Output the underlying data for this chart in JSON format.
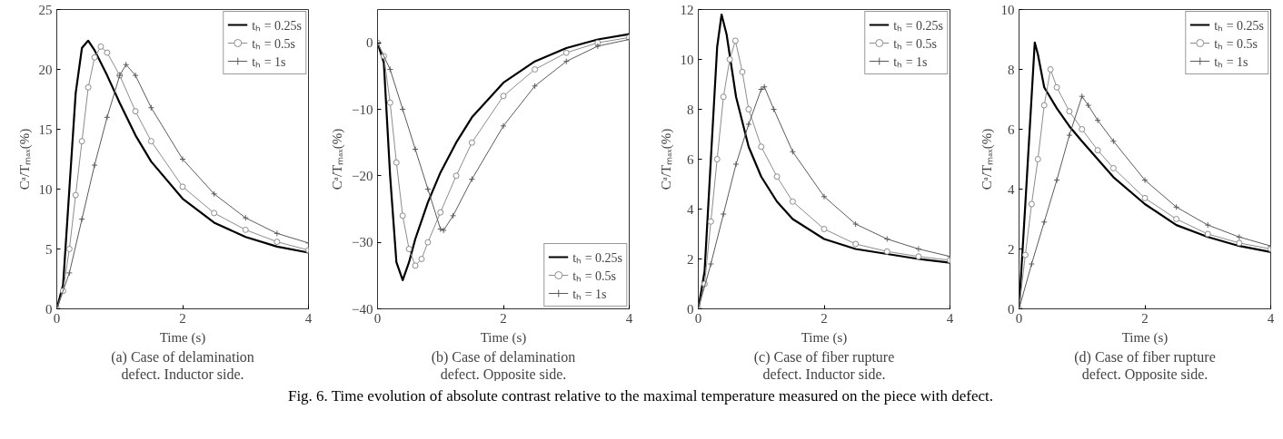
{
  "chart_data": [
    {
      "type": "line",
      "subtitle": "(a) Case of delamination\ndefect. Inductor side.",
      "xlabel": "Time (s)",
      "ylabel": "Cᵃ/Tₘₐₓ(%)",
      "xlim": [
        0,
        4
      ],
      "xticks": [
        0,
        2,
        4
      ],
      "ylim": [
        0,
        25
      ],
      "yticks": [
        0,
        5,
        10,
        15,
        20,
        25
      ],
      "grid": false,
      "legend": "top right",
      "line_style": "solid",
      "series": [
        {
          "name": "tₕ = 0.25s",
          "color": "#000000",
          "marker": "none",
          "x": [
            0,
            0.1,
            0.2,
            0.3,
            0.4,
            0.5,
            0.6,
            0.8,
            1,
            1.25,
            1.5,
            2,
            2.5,
            3,
            3.5,
            4
          ],
          "values": [
            0,
            2,
            10,
            18,
            21.8,
            22.4,
            21.6,
            19.5,
            17.2,
            14.5,
            12.3,
            9.2,
            7.2,
            6,
            5.2,
            4.7
          ]
        },
        {
          "name": "tₕ = 0.5s",
          "color": "#8c8c8c",
          "marker": "circle",
          "x": [
            0,
            0.1,
            0.2,
            0.3,
            0.4,
            0.5,
            0.6,
            0.7,
            0.8,
            1,
            1.25,
            1.5,
            2,
            2.5,
            3,
            3.5,
            4
          ],
          "values": [
            0,
            1.5,
            5,
            9.5,
            14,
            18.5,
            21,
            21.9,
            21.4,
            19.5,
            16.5,
            14,
            10.2,
            8,
            6.6,
            5.6,
            4.9
          ]
        },
        {
          "name": "tₕ = 1s",
          "color": "#5a5a5a",
          "marker": "cross",
          "x": [
            0,
            0.2,
            0.4,
            0.6,
            0.8,
            1,
            1.1,
            1.25,
            1.5,
            2,
            2.5,
            3,
            3.5,
            4
          ],
          "values": [
            0,
            3,
            7.5,
            12,
            16,
            19.5,
            20.4,
            19.5,
            16.8,
            12.5,
            9.6,
            7.6,
            6.3,
            5.5
          ]
        }
      ]
    },
    {
      "type": "line",
      "subtitle": "(b) Case of delamination\ndefect. Opposite side.",
      "xlabel": "Time (s)",
      "ylabel": "Cᵃ/Tₘₐₓ(%)",
      "xlim": [
        0,
        4
      ],
      "xticks": [
        0,
        2,
        4
      ],
      "ylim": [
        -40,
        5
      ],
      "yticks": [
        -40,
        -30,
        -20,
        -10,
        0
      ],
      "grid": false,
      "legend": "bottom right",
      "line_style": "solid",
      "series": [
        {
          "name": "tₕ = 0.25s",
          "color": "#000000",
          "marker": "none",
          "x": [
            0,
            0.1,
            0.2,
            0.3,
            0.4,
            0.5,
            0.6,
            0.8,
            1,
            1.25,
            1.5,
            2,
            2.5,
            3,
            3.5,
            4
          ],
          "values": [
            0,
            -3,
            -20,
            -33,
            -35.7,
            -33,
            -29.5,
            -24,
            -19.5,
            -15,
            -11.2,
            -6,
            -2.8,
            -0.8,
            0.5,
            1.3
          ]
        },
        {
          "name": "tₕ = 0.5s",
          "color": "#8c8c8c",
          "marker": "circle",
          "x": [
            0,
            0.1,
            0.2,
            0.3,
            0.4,
            0.5,
            0.6,
            0.7,
            0.8,
            1,
            1.25,
            1.5,
            2,
            2.5,
            3,
            3.5,
            4
          ],
          "values": [
            0,
            -2,
            -9,
            -18,
            -26,
            -31,
            -33.5,
            -32.5,
            -30,
            -25.5,
            -20,
            -15,
            -8,
            -4,
            -1.5,
            0,
            0.8
          ]
        },
        {
          "name": "tₕ = 1s",
          "color": "#5a5a5a",
          "marker": "cross",
          "x": [
            0,
            0.2,
            0.4,
            0.6,
            0.8,
            1,
            1.05,
            1.2,
            1.5,
            2,
            2.5,
            3,
            3.5,
            4
          ],
          "values": [
            0,
            -4,
            -10,
            -16,
            -22,
            -28,
            -28.2,
            -26,
            -20.5,
            -12.5,
            -6.5,
            -2.8,
            -0.5,
            0.5
          ]
        }
      ]
    },
    {
      "type": "line",
      "subtitle": "(c) Case of fiber rupture\ndefect. Inductor side.",
      "xlabel": "Time (s)",
      "ylabel": "Cᵃ/Tₘₐₓ(%)",
      "xlim": [
        0,
        4
      ],
      "xticks": [
        0,
        2,
        4
      ],
      "ylim": [
        0,
        12
      ],
      "yticks": [
        0,
        2,
        4,
        6,
        8,
        10,
        12
      ],
      "grid": false,
      "legend": "top right",
      "line_style": "solid",
      "series": [
        {
          "name": "tₕ = 0.25s",
          "color": "#000000",
          "marker": "none",
          "x": [
            0,
            0.1,
            0.2,
            0.3,
            0.37,
            0.45,
            0.6,
            0.8,
            1,
            1.25,
            1.5,
            2,
            2.5,
            3,
            3.5,
            4
          ],
          "values": [
            0,
            1.5,
            6,
            10.5,
            11.8,
            11,
            8.5,
            6.5,
            5.3,
            4.3,
            3.6,
            2.8,
            2.4,
            2.2,
            2,
            1.85
          ]
        },
        {
          "name": "tₕ = 0.5s",
          "color": "#8c8c8c",
          "marker": "circle",
          "x": [
            0,
            0.1,
            0.2,
            0.3,
            0.4,
            0.5,
            0.59,
            0.7,
            0.8,
            1,
            1.25,
            1.5,
            2,
            2.5,
            3,
            3.5,
            4
          ],
          "values": [
            0,
            1,
            3.5,
            6,
            8.5,
            10,
            10.75,
            9.5,
            8,
            6.5,
            5.3,
            4.3,
            3.2,
            2.6,
            2.3,
            2.1,
            1.95
          ]
        },
        {
          "name": "tₕ = 1s",
          "color": "#5a5a5a",
          "marker": "cross",
          "x": [
            0,
            0.2,
            0.4,
            0.6,
            0.8,
            1,
            1.05,
            1.2,
            1.5,
            2,
            2.5,
            3,
            3.5,
            4
          ],
          "values": [
            0,
            1.8,
            3.8,
            5.8,
            7.4,
            8.8,
            8.9,
            8,
            6.3,
            4.5,
            3.4,
            2.8,
            2.4,
            2.1
          ]
        }
      ]
    },
    {
      "type": "line",
      "subtitle": "(d) Case of fiber rupture\ndefect. Opposite side.",
      "xlabel": "Time (s)",
      "ylabel": "Cᵃ/Tₘₐₓ(%)",
      "xlim": [
        0,
        4
      ],
      "xticks": [
        0,
        2,
        4
      ],
      "ylim": [
        0,
        10
      ],
      "yticks": [
        0,
        2,
        4,
        6,
        8,
        10
      ],
      "grid": false,
      "legend": "top right",
      "line_style": "solid",
      "annotations": [
        "Fig. 6. Time evolution of absolute contrast relative to the maximal temperature measured on the piece with defect."
      ],
      "series": [
        {
          "name": "tₕ = 0.25s",
          "color": "#000000",
          "marker": "none",
          "x": [
            0,
            0.1,
            0.25,
            0.3,
            0.4,
            0.6,
            0.8,
            1,
            1.25,
            1.5,
            2,
            2.5,
            3,
            3.5,
            4
          ],
          "values": [
            0,
            3.5,
            8.9,
            8.5,
            7.4,
            6.7,
            6.1,
            5.6,
            5,
            4.4,
            3.5,
            2.8,
            2.4,
            2.1,
            1.9
          ]
        },
        {
          "name": "tₕ = 0.5s",
          "color": "#8c8c8c",
          "marker": "circle",
          "x": [
            0,
            0.1,
            0.2,
            0.3,
            0.4,
            0.5,
            0.6,
            0.8,
            1,
            1.25,
            1.5,
            2,
            2.5,
            3,
            3.5,
            4
          ],
          "values": [
            0,
            1.8,
            3.5,
            5,
            6.8,
            8,
            7.4,
            6.6,
            6,
            5.3,
            4.7,
            3.7,
            3,
            2.5,
            2.2,
            2
          ]
        },
        {
          "name": "tₕ = 1s",
          "color": "#5a5a5a",
          "marker": "cross",
          "x": [
            0,
            0.2,
            0.4,
            0.6,
            0.8,
            1,
            1.1,
            1.25,
            1.5,
            2,
            2.5,
            3,
            3.5,
            4
          ],
          "values": [
            0,
            1.5,
            2.9,
            4.3,
            5.8,
            7.1,
            6.8,
            6.3,
            5.6,
            4.3,
            3.4,
            2.8,
            2.4,
            2.1
          ]
        }
      ]
    }
  ]
}
